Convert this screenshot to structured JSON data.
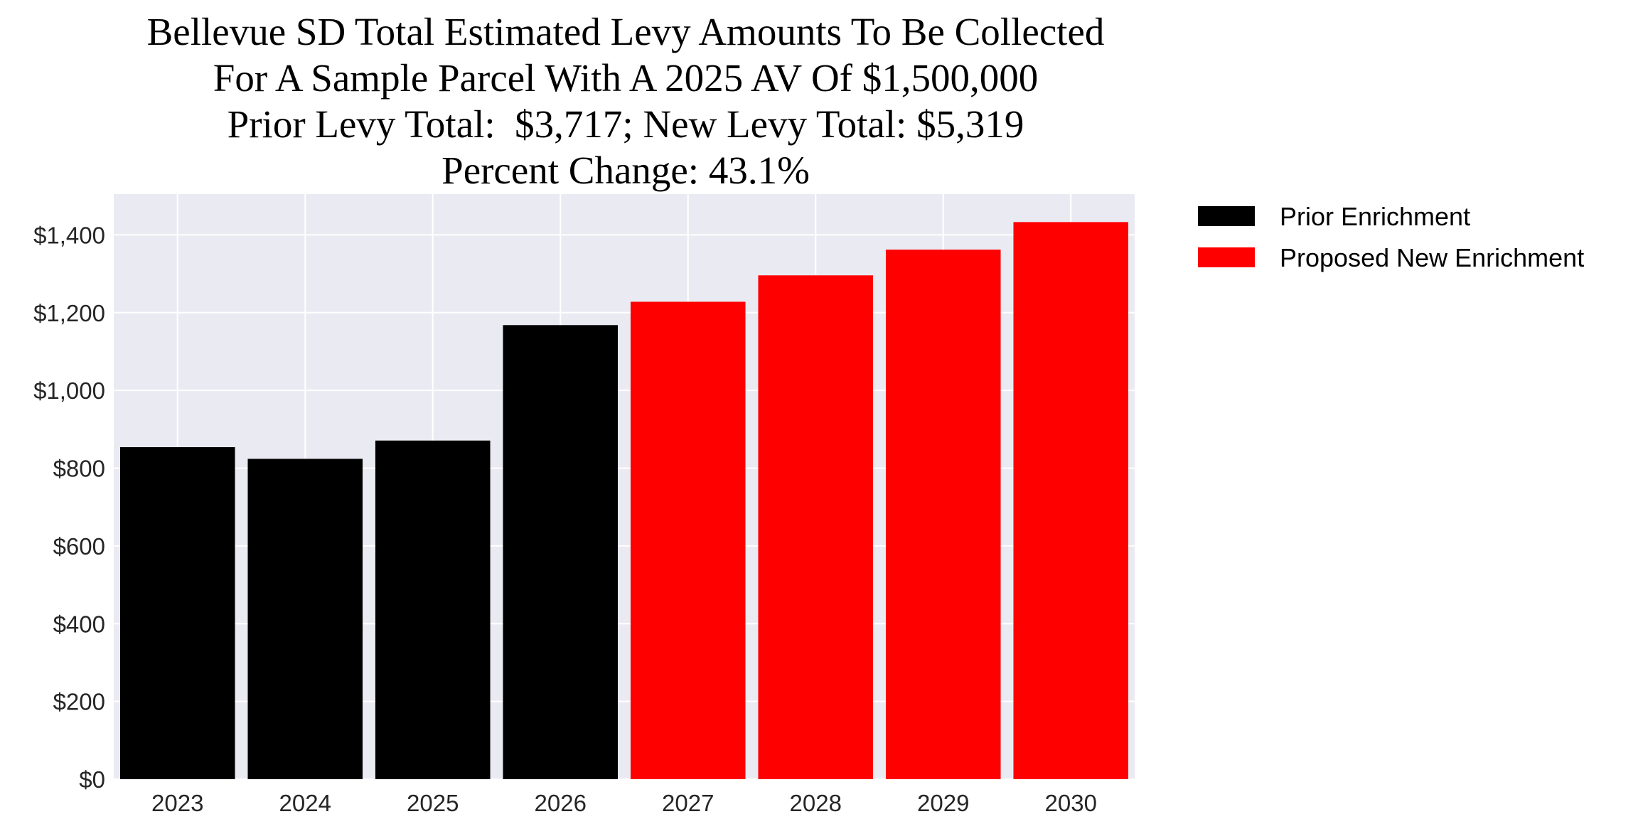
{
  "chart_data": {
    "type": "bar",
    "title_lines": [
      "Bellevue SD Total Estimated Levy Amounts To Be Collected",
      "For A Sample Parcel With A 2025 AV Of $1,500,000",
      "Prior Levy Total:  $3,717; New Levy Total: $5,319",
      "Percent Change: 43.1%"
    ],
    "categories": [
      "2023",
      "2024",
      "2025",
      "2026",
      "2027",
      "2028",
      "2029",
      "2030"
    ],
    "values": [
      854,
      824,
      871,
      1168,
      1228,
      1296,
      1362,
      1433
    ],
    "bar_series": [
      "Prior Enrichment",
      "Prior Enrichment",
      "Prior Enrichment",
      "Prior Enrichment",
      "Proposed New Enrichment",
      "Proposed New Enrichment",
      "Proposed New Enrichment",
      "Proposed New Enrichment"
    ],
    "series": [
      {
        "name": "Prior Enrichment",
        "color": "#000000"
      },
      {
        "name": "Proposed New Enrichment",
        "color": "#ff0000"
      }
    ],
    "yticks": [
      0,
      200,
      400,
      600,
      800,
      1000,
      1200,
      1400
    ],
    "ytick_labels": [
      "$0",
      "$200",
      "$400",
      "$600",
      "$800",
      "$1,000",
      "$1,200",
      "$1,400"
    ],
    "ylim": [
      0,
      1505
    ],
    "xlabel": "",
    "ylabel": "",
    "grid": true,
    "background": "#eaeaf2",
    "legend_position": "outside-top-right"
  }
}
